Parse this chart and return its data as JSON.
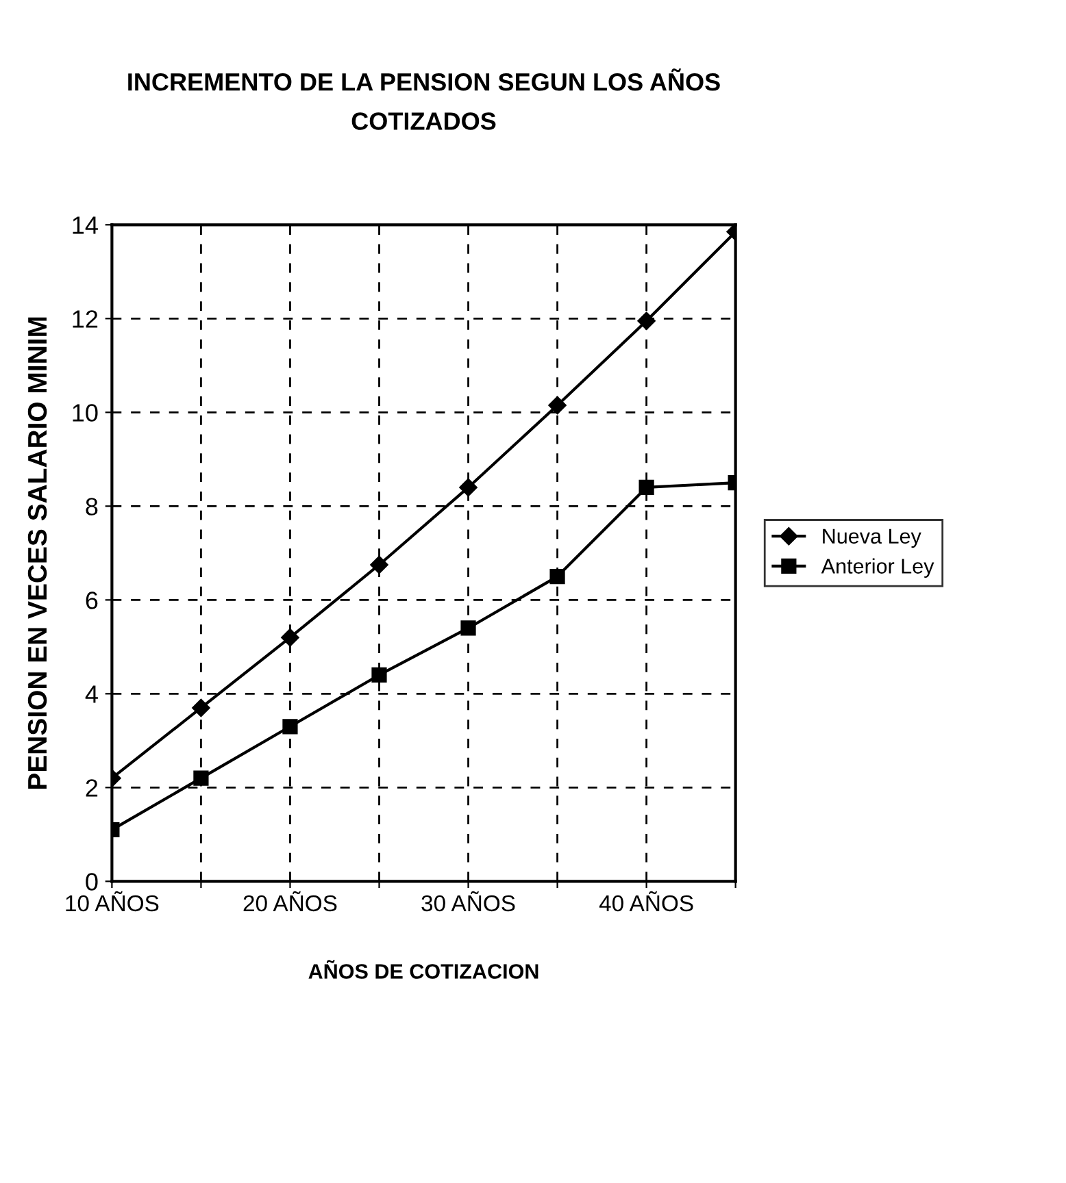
{
  "chart_data": {
    "type": "line",
    "title": "INCREMENTO DE LA PENSION SEGUN LOS AÑOS\nCOTIZADOS",
    "xlabel": "AÑOS DE COTIZACION",
    "ylabel": "PENSION EN VECES SALARIO MINIM",
    "categories": [
      "10 AÑOS",
      null,
      "20 AÑOS",
      null,
      "30 AÑOS",
      null,
      "40 AÑOS",
      null
    ],
    "series": [
      {
        "name": "Nueva Ley",
        "color": "#000000",
        "marker": "diamond",
        "values": [
          2.2,
          3.7,
          5.2,
          6.75,
          8.4,
          10.15,
          11.95,
          13.85
        ]
      },
      {
        "name": "Anterior Ley",
        "color": "#000000",
        "marker": "square",
        "values": [
          1.1,
          2.2,
          3.3,
          4.4,
          5.4,
          6.5,
          8.4,
          8.5
        ]
      }
    ],
    "ylim": [
      0,
      14
    ],
    "yticks": [
      0,
      2,
      4,
      6,
      8,
      10,
      12,
      14
    ],
    "grid": true,
    "legend": "right",
    "line_style": "solid"
  }
}
